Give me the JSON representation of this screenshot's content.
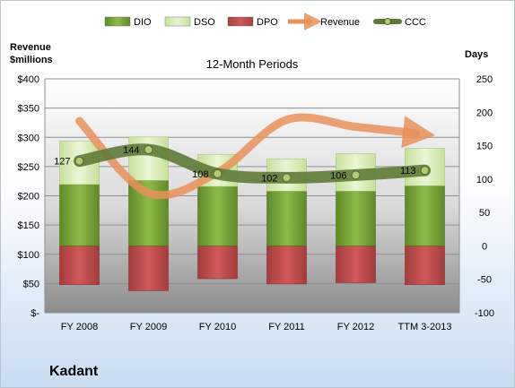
{
  "chart_data": {
    "type": "bar",
    "title": "12-Month Periods",
    "left_axis_label": [
      "Revenue",
      "$millions"
    ],
    "right_axis_label": "Days",
    "categories": [
      "FY 2008",
      "FY 2009",
      "FY 2010",
      "FY 2011",
      "FY 2012",
      "TTM 3-2013"
    ],
    "left_axis": {
      "min": 0,
      "max": 400,
      "step": 50,
      "tick_labels": [
        "$-",
        "$50",
        "$100",
        "$150",
        "$200",
        "$250",
        "$300",
        "$350",
        "$400"
      ]
    },
    "right_axis": {
      "min": -100,
      "max": 250,
      "step": 50,
      "tick_labels": [
        "-100",
        "-50",
        "0",
        "50",
        "100",
        "150",
        "200",
        "250"
      ]
    },
    "legend_position": "top",
    "series": [
      {
        "name": "DIO",
        "kind": "bar",
        "values": [
          92,
          98,
          89,
          82,
          82,
          90
        ],
        "color": "#76a035"
      },
      {
        "name": "DSO",
        "kind": "bar",
        "values": [
          65,
          65,
          48,
          48,
          56,
          56
        ],
        "color": "#d7ecb3"
      },
      {
        "name": "DPO",
        "kind": "bar",
        "values": [
          -58,
          -67,
          -49,
          -57,
          -55,
          -58
        ],
        "color": "#b84848"
      },
      {
        "name": "Revenue",
        "kind": "line",
        "values": [
          328,
          205,
          240,
          330,
          318,
          307
        ],
        "color": "#e8915a"
      },
      {
        "name": "CCC",
        "kind": "line",
        "values": [
          127,
          144,
          108,
          102,
          106,
          113
        ],
        "data_labels": [
          "127",
          "144",
          "108",
          "102",
          "106",
          "113"
        ],
        "color": "#5e7a37"
      }
    ]
  },
  "company": "Kadant"
}
